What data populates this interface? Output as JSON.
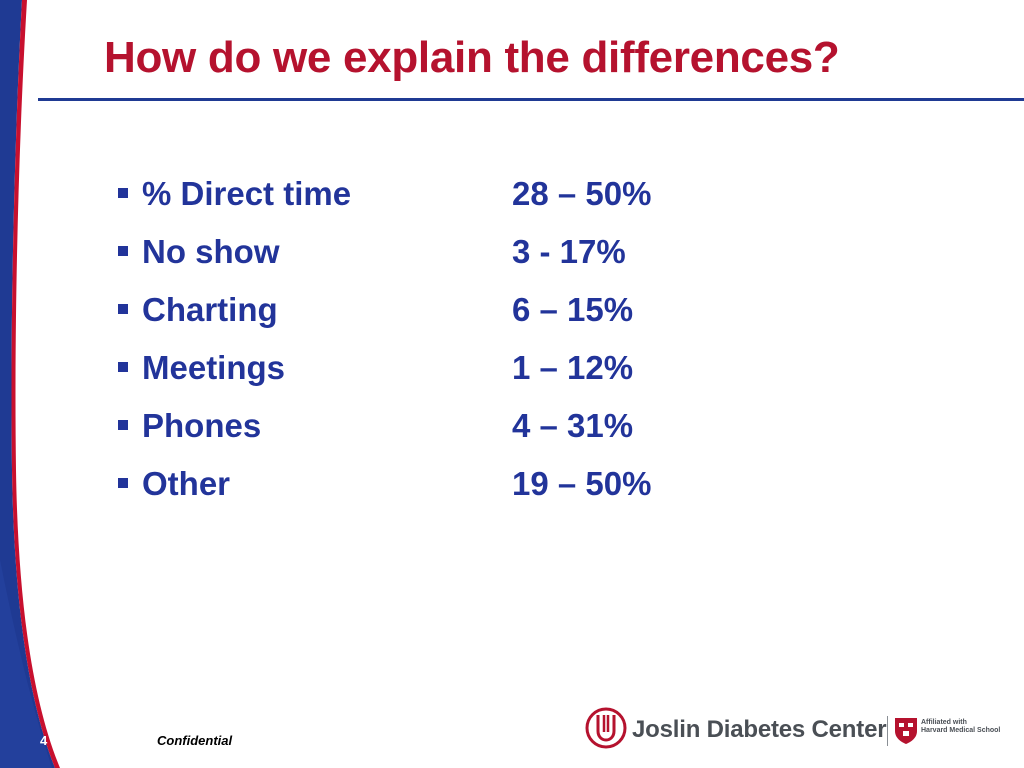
{
  "slide": {
    "title": "How do we explain the differences?",
    "items": [
      {
        "label": "% Direct time",
        "value": "28 – 50%"
      },
      {
        "label": "No show",
        "value": "3 - 17%"
      },
      {
        "label": "Charting",
        "value": "6 – 15%"
      },
      {
        "label": "Meetings",
        "value": "1 – 12%"
      },
      {
        "label": "Phones",
        "value": "4 – 31%"
      },
      {
        "label": "Other",
        "value": "19 – 50%"
      }
    ]
  },
  "footer": {
    "page_number": "4",
    "confidential": "Confidential",
    "logo_text": "Joslin Diabetes Center",
    "affiliation_line1": "Affiliated with",
    "affiliation_line2": "Harvard Medical School"
  },
  "colors": {
    "title": "#b5122e",
    "body_text": "#22349a",
    "left_band_blue": "#1f3a93",
    "left_band_red": "#c8102e",
    "logo_red": "#b5122e"
  },
  "icons": {
    "bullet": "square-bullet",
    "logo": "joslin-logo-mark",
    "shield": "harvard-shield-icon"
  }
}
